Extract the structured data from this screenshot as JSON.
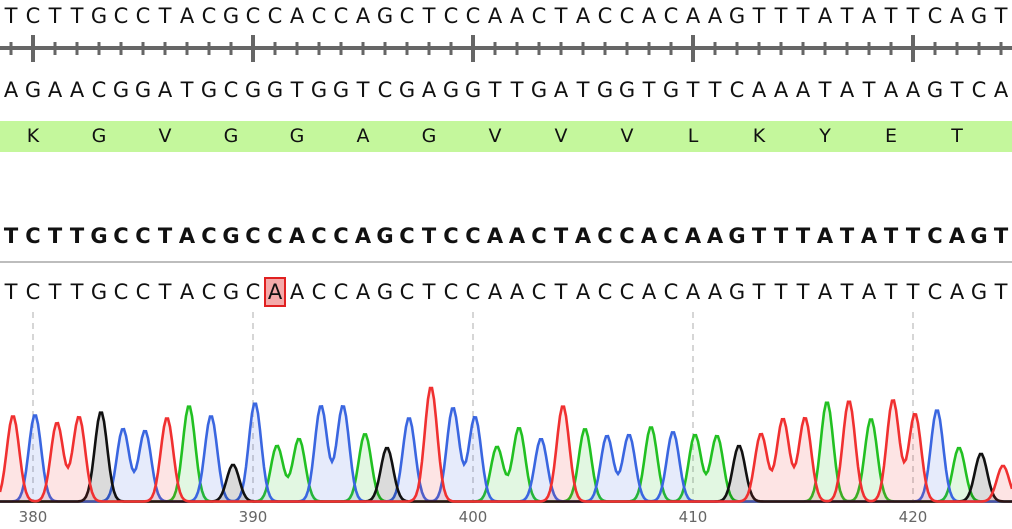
{
  "start_position": 379,
  "top_sequence": "TCTTGCCTACGCCACCAGCTCCAACTACCACAAGTTTATATTCAGT",
  "complement_sequence": "AGAACGGATGCGGTGGTCGAGGTTGATGGTGTTCAAATATAAGTCA",
  "translation": {
    "frame_offset": 1,
    "amino_acids": [
      "K",
      "G",
      "V",
      "G",
      "G",
      "A",
      "G",
      "V",
      "V",
      "V",
      "L",
      "K",
      "Y",
      "E",
      "T"
    ],
    "color": "#c4f79c"
  },
  "reference_sequence": "TCTTGCCTACGCCACCAGCTCCAACTACCACAAGTTTATATTCAGT",
  "read_sequence": "TCTTGCCTACGCAACCAGCTCCAACTACCACAAGTTTATATTCAGT",
  "mismatch_index": 12,
  "ruler_labels": [
    "380",
    "390",
    "400",
    "410",
    "420"
  ],
  "base_colors": {
    "A": "#22c022",
    "C": "#3a66e0",
    "G": "#111111",
    "T": "#f03030"
  },
  "peak_intensities": [
    86,
    87,
    79,
    85,
    90,
    73,
    71,
    84,
    96,
    86,
    37,
    99,
    56,
    63,
    96,
    96,
    68,
    54,
    84,
    115,
    94,
    85,
    55,
    74,
    63,
    96,
    73,
    66,
    67,
    75,
    70,
    67,
    66,
    56,
    68,
    83,
    84,
    100,
    101,
    83,
    102,
    88,
    92,
    54,
    48,
    36
  ]
}
